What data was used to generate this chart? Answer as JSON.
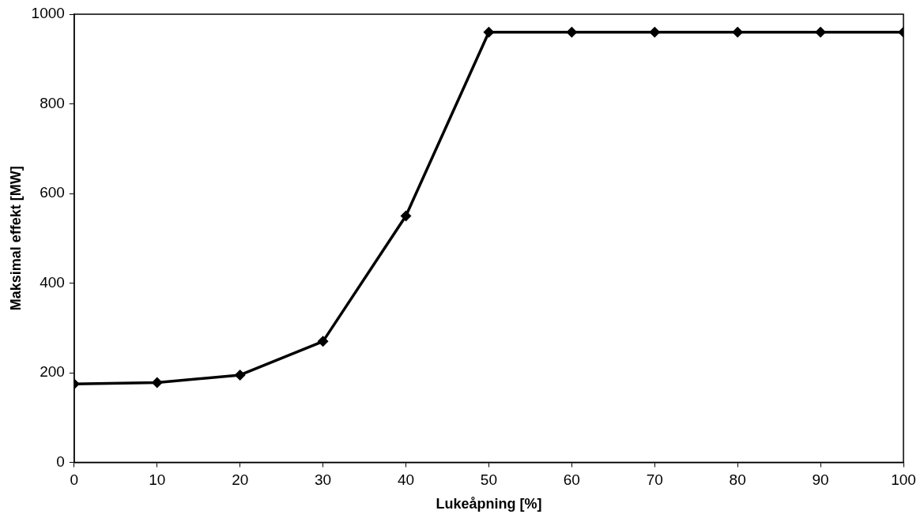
{
  "chart_data": {
    "type": "line",
    "xlabel": "Lukeåpning [%]",
    "ylabel": "Maksimal effekt [MW]",
    "x": [
      0,
      10,
      20,
      30,
      40,
      50,
      60,
      70,
      80,
      90,
      100
    ],
    "series": [
      {
        "color": "#000000",
        "values": [
          175,
          178,
          195,
          270,
          550,
          960,
          960,
          960,
          960,
          960,
          960
        ]
      }
    ],
    "xlim": [
      0,
      100
    ],
    "xticks": [
      0,
      10,
      20,
      30,
      40,
      50,
      60,
      70,
      80,
      90,
      100
    ],
    "ylim": [
      0,
      1000
    ],
    "yticks": [
      0,
      200,
      400,
      600,
      800,
      1000
    ],
    "grid": false,
    "legend": false,
    "marker": "diamond",
    "line_style": "solid"
  }
}
